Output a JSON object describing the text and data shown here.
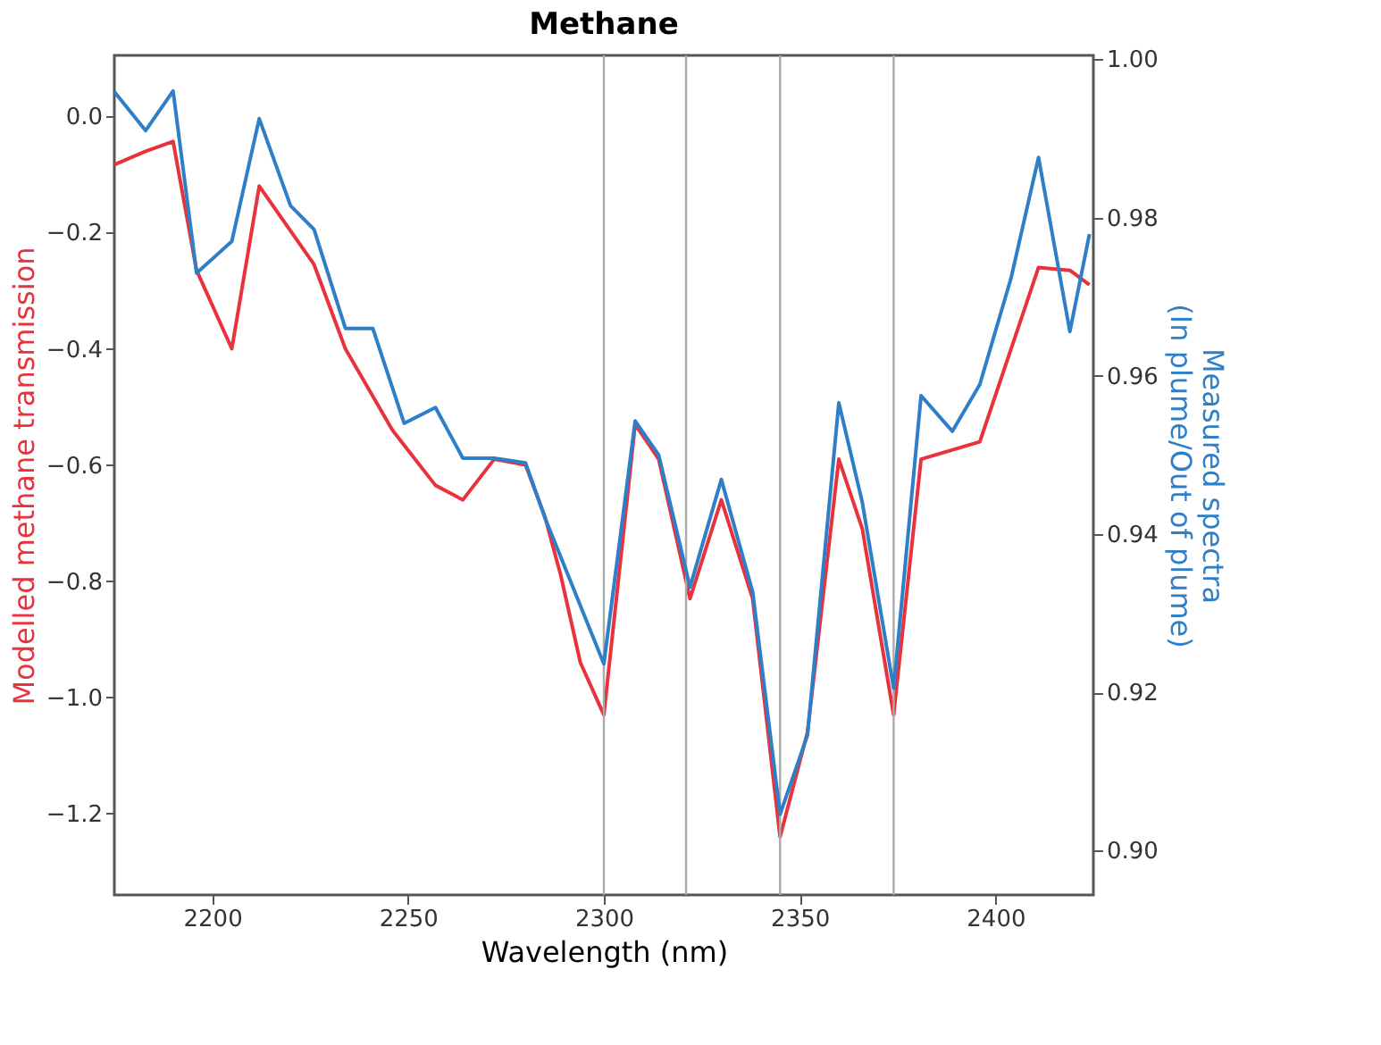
{
  "chart_data": {
    "type": "line",
    "title": "Methane",
    "xlabel": "Wavelength (nm)",
    "ylabel": "Modelled methane transmission",
    "y2label": "Measured spectra\n(In plume/Out of plume)",
    "xlim": [
      2175,
      2425
    ],
    "xticks": [
      2200,
      2250,
      2300,
      2350,
      2400
    ],
    "ylim": [
      -1.34,
      0.105
    ],
    "yticks": [
      {
        "value": 0,
        "label": "0.0"
      },
      {
        "value": -0.2,
        "label": "−0.2"
      },
      {
        "value": -0.4,
        "label": "−0.4"
      },
      {
        "value": -0.6,
        "label": "−0.6"
      },
      {
        "value": -0.8,
        "label": "−0.8"
      },
      {
        "value": -1.0,
        "label": "−1.0"
      },
      {
        "value": -1.2,
        "label": "−1.2"
      }
    ],
    "y2lim": [
      0.8944,
      1.0005
    ],
    "y2ticks": [
      {
        "value": 0.9,
        "label": "0.90"
      },
      {
        "value": 0.92,
        "label": "0.92"
      },
      {
        "value": 0.94,
        "label": "0.94"
      },
      {
        "value": 0.96,
        "label": "0.96"
      },
      {
        "value": 0.98,
        "label": "0.98"
      },
      {
        "value": 1.0,
        "label": "1.00"
      }
    ],
    "grid": false,
    "marker": "none",
    "line_style": "solid",
    "series": [
      {
        "color": "#e8323c",
        "x": [
          2175,
          2183,
          2190,
          2196,
          2205,
          2212,
          2226,
          2234,
          2246,
          2257,
          2264,
          2272,
          2280,
          2285,
          2289,
          2294,
          2300,
          2308,
          2314,
          2322,
          2330,
          2338,
          2345,
          2352,
          2360,
          2366,
          2374,
          2381,
          2396,
          2411,
          2419,
          2424
        ],
        "values": [
          -0.083,
          -0.06,
          -0.043,
          -0.265,
          -0.4,
          -0.12,
          -0.255,
          -0.4,
          -0.54,
          -0.635,
          -0.66,
          -0.59,
          -0.6,
          -0.69,
          -0.79,
          -0.94,
          -1.03,
          -0.53,
          -0.59,
          -0.83,
          -0.66,
          -0.83,
          -1.24,
          -1.06,
          -0.59,
          -0.71,
          -1.03,
          -0.59,
          -0.56,
          -0.26,
          -0.265,
          -0.29
        ]
      },
      {
        "color": "#2f7fc8",
        "axis": "y2",
        "x": [
          2175,
          2183,
          2190,
          2196,
          2205,
          2212,
          2220,
          2226,
          2234,
          2241,
          2249,
          2257,
          2264,
          2272,
          2280,
          2285,
          2300,
          2308,
          2314,
          2322,
          2330,
          2338,
          2345,
          2352,
          2360,
          2366,
          2374,
          2381,
          2389,
          2396,
          2404,
          2411,
          2419,
          2424
        ],
        "values": [
          0.9959,
          0.991,
          0.996,
          0.973,
          0.977,
          0.9925,
          0.9815,
          0.9785,
          0.966,
          0.966,
          0.954,
          0.956,
          0.9496,
          0.9496,
          0.949,
          0.942,
          0.9236,
          0.9543,
          0.95,
          0.9333,
          0.9469,
          0.9327,
          0.9046,
          0.9146,
          0.9566,
          0.944,
          0.9205,
          0.9575,
          0.953,
          0.9589,
          0.9724,
          0.9876,
          0.9656,
          0.9779
        ]
      }
    ],
    "ref_lines": [
      {
        "axis": "x",
        "value": 2300,
        "color": "#aaaaaa"
      },
      {
        "axis": "x",
        "value": 2321,
        "color": "#aaaaaa"
      },
      {
        "axis": "x",
        "value": 2345,
        "color": "#aaaaaa"
      },
      {
        "axis": "x",
        "value": 2374,
        "color": "#aaaaaa"
      }
    ]
  }
}
